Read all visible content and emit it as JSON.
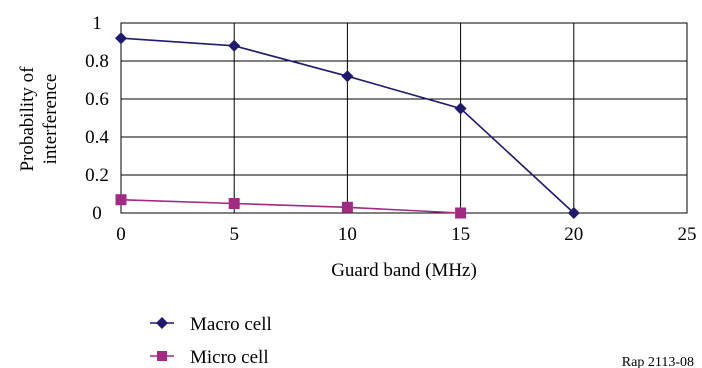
{
  "chart_data": {
    "type": "line",
    "x": [
      0,
      5,
      10,
      15,
      20
    ],
    "series": [
      {
        "name": "Macro cell",
        "color": "#1f1a6e",
        "marker": "diamond",
        "values": [
          0.92,
          0.88,
          0.72,
          0.55,
          0
        ]
      },
      {
        "name": "Micro cell",
        "color": "#a12a82",
        "marker": "square",
        "values": [
          0.07,
          0.05,
          0.03,
          0,
          null
        ]
      }
    ],
    "xlabel": "Guard band (MHz)",
    "ylabel_lines": [
      "Probability of",
      "interference"
    ],
    "xlim": [
      0,
      25
    ],
    "ylim": [
      0,
      1
    ],
    "xticks": [
      "0",
      "5",
      "10",
      "15",
      "20",
      "25"
    ],
    "yticks": [
      "0",
      "0.2",
      "0.4",
      "0.6",
      "0.8",
      "1"
    ],
    "grid": true,
    "legend_position": "bottom-left"
  },
  "figure_ref": "Rap 2113-08"
}
